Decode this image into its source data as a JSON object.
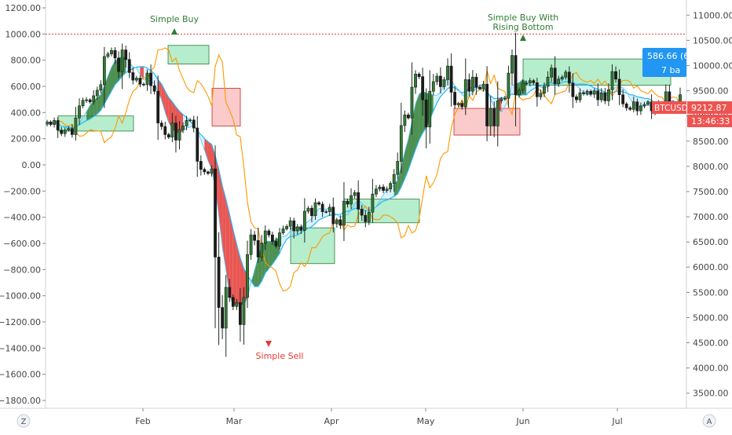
{
  "chart_data": {
    "type": "candlestick",
    "left_axis": {
      "ticks": [
        "1200.00",
        "1000.00",
        "800.00",
        "600.00",
        "400.00",
        "200.00",
        "0.00",
        "-200.00",
        "-400.00",
        "-600.00",
        "-800.00",
        "-1000.00",
        "-1200.00",
        "-1400.00",
        "-1600.00",
        "-1800.00"
      ],
      "range": [
        -1860,
        1260
      ]
    },
    "right_axis": {
      "ticks": [
        "11000.00",
        "10500.00",
        "10000.00",
        "9500.00",
        "9000.00",
        "8500.00",
        "8000.00",
        "7500.00",
        "7000.00",
        "6500.00",
        "6000.00",
        "5500.00",
        "5000.00",
        "4500.00",
        "4000.00",
        "3500.00"
      ],
      "range": [
        3200,
        11300
      ]
    },
    "x_axis": {
      "ticks": [
        "Feb",
        "Mar",
        "Apr",
        "May",
        "Jun",
        "Jul"
      ]
    },
    "reference_line": {
      "value": 1000,
      "style": "dotted",
      "color": "#e53935"
    },
    "annotations": [
      {
        "text": "Simple Buy",
        "type": "buy",
        "date": "Feb 11"
      },
      {
        "text": "Simple Buy With",
        "text2": "Rising Bottom",
        "type": "buy",
        "date": "Jun 1"
      },
      {
        "text": "Simple Sell",
        "type": "sell",
        "date": "Mar 12"
      }
    ],
    "price_tags": [
      {
        "text": "586.66 (6.",
        "text2": "7 ba",
        "color": "#2196f3"
      },
      {
        "text": "BTCUSD",
        "value": "9212.87",
        "color": "#ef5350"
      },
      {
        "text": "13:46:33",
        "color": "#ef5350"
      }
    ],
    "series": [
      {
        "type": "candles",
        "symbol": "BTCUSD",
        "close": [
          8880,
          8830,
          8910,
          8720,
          8650,
          8720,
          8750,
          8630,
          8960,
          9200,
          9310,
          9320,
          9280,
          9400,
          9510,
          9620,
          10180,
          10230,
          10300,
          10150,
          9880,
          10310,
          10120,
          9860,
          9710,
          9750,
          9630,
          9620,
          9850,
          9600,
          9490,
          8860,
          8790,
          8630,
          8580,
          8860,
          8520,
          8730,
          8800,
          8910,
          8920,
          8760,
          8100,
          7940,
          7890,
          7860,
          7950,
          6200,
          5200,
          4790,
          5600,
          5400,
          5220,
          5300,
          4860,
          5400,
          6250,
          6640,
          6530,
          6200,
          6480,
          6720,
          6640,
          6510,
          6420,
          6680,
          6760,
          6810,
          6920,
          6720,
          6800,
          6730,
          7110,
          7170,
          7020,
          7280,
          7250,
          7100,
          7100,
          7190,
          6860,
          6940,
          6830,
          7310,
          7250,
          7420,
          7480,
          7150,
          7030,
          6900,
          7090,
          7450,
          7550,
          7590,
          7520,
          7550,
          7660,
          7840,
          8100,
          8810,
          9020,
          8960,
          9570,
          9830,
          9780,
          9320,
          8780,
          9490,
          9680,
          9790,
          9580,
          9720,
          9990,
          9470,
          9220,
          9250,
          9180,
          9720,
          9490,
          9770,
          9570,
          9540,
          9630,
          8800,
          9150,
          8800,
          9300,
          9340,
          9350,
          9850,
          10200,
          9420,
          9510,
          9650,
          9650,
          9700,
          9660,
          9380,
          9450,
          9590,
          9770,
          9950,
          9640,
          9730,
          9770,
          9870,
          9650,
          9380,
          9320,
          9460,
          9440,
          9490,
          9430,
          9500,
          9320,
          9460,
          9300,
          9520,
          9880,
          9730,
          9420,
          9240,
          9160,
          9130,
          9280,
          9100,
          9200,
          9230,
          9280,
          9100,
          9200,
          9260,
          9260,
          9480,
          9270,
          9210,
          9220,
          9420
        ]
      },
      {
        "type": "line",
        "name": "ATR trailing stop",
        "color": "#ff9800"
      },
      {
        "type": "line",
        "name": "moving average",
        "color": "#29b6f6"
      }
    ],
    "boxes": [
      {
        "color": "green",
        "from": "Jan 5",
        "to": "Jan 29",
        "top": 9000,
        "bottom": 8700
      },
      {
        "color": "green",
        "from": "Feb 9",
        "to": "Feb 22",
        "top": 10400,
        "bottom": 10030
      },
      {
        "color": "red",
        "from": "Feb 23",
        "to": "Mar 3",
        "top": 9550,
        "bottom": 8800
      },
      {
        "color": "green",
        "from": "Mar 19",
        "to": "Apr 2",
        "top": 6780,
        "bottom": 6070
      },
      {
        "color": "green",
        "from": "Apr 5",
        "to": "Apr 29",
        "top": 7350,
        "bottom": 6880
      },
      {
        "color": "red",
        "from": "May 10",
        "to": "May 31",
        "top": 9150,
        "bottom": 8620
      },
      {
        "color": "green",
        "from": "Jun 1",
        "to": "Jul 18",
        "top": 10130,
        "bottom": 9610
      }
    ]
  }
}
